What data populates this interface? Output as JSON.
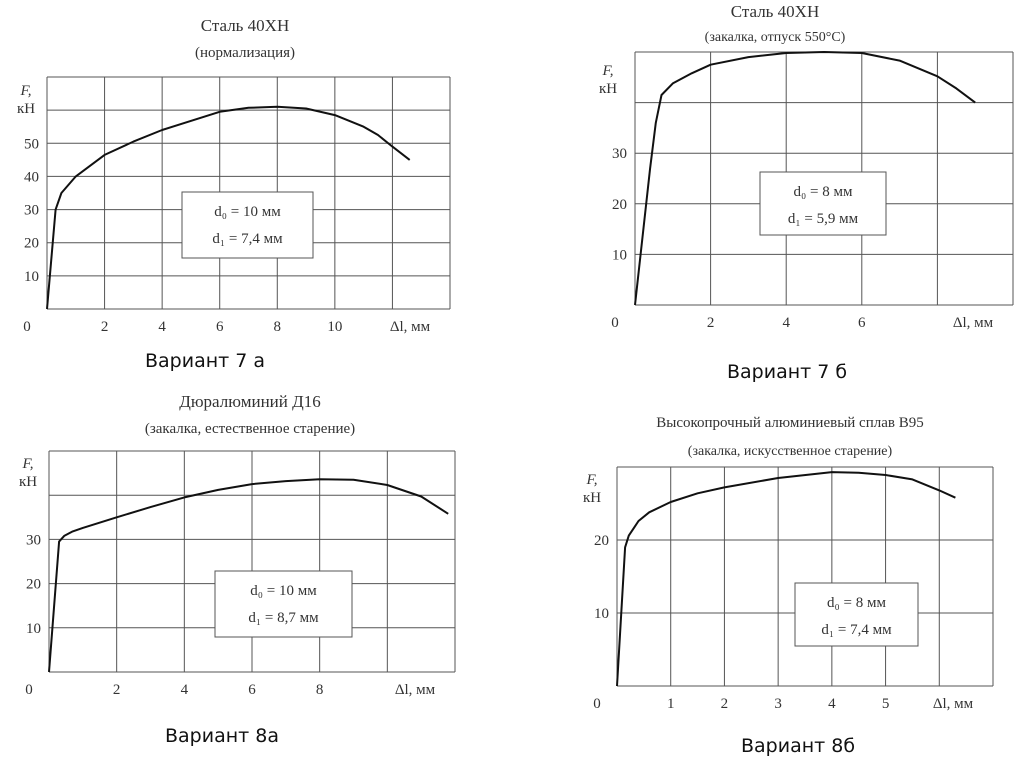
{
  "chart_data": [
    {
      "type": "line",
      "title": "Сталь  40ХН",
      "subtitle": "(нормализация)",
      "caption": "Вариант 7 а",
      "ylabel": [
        "F,",
        "кН"
      ],
      "xlabel": "Δl, мм",
      "xlim": [
        0,
        14
      ],
      "ylim": [
        0,
        70
      ],
      "x_grid_step": 2,
      "y_grid_step": 10,
      "grid": true,
      "x_ticks": [
        "0",
        "2",
        "4",
        "6",
        "8",
        "10"
      ],
      "x_tick_values": [
        0,
        2,
        4,
        6,
        8,
        10
      ],
      "y_ticks": [
        "10",
        "20",
        "30",
        "40",
        "50"
      ],
      "y_tick_values": [
        10,
        20,
        30,
        40,
        50
      ],
      "annotation": [
        "d₀ = 10 мм",
        "d₁ = 7,4 мм"
      ],
      "x": [
        0,
        0.3,
        0.5,
        1,
        2,
        3,
        4,
        6,
        7,
        8,
        9,
        10,
        11,
        11.5,
        12,
        12.6
      ],
      "y": [
        0,
        30,
        35,
        40,
        46.5,
        50.5,
        54,
        59.5,
        60.7,
        61,
        60.5,
        58.5,
        55,
        52.5,
        49,
        45
      ]
    },
    {
      "type": "line",
      "title": "Сталь  40ХН",
      "subtitle": "(закалка, отпуск 550°С)",
      "caption": "Вариант 7 б",
      "ylabel": [
        "F,",
        "кН"
      ],
      "xlabel": "Δl, мм",
      "xlim": [
        0,
        10
      ],
      "ylim": [
        0,
        50
      ],
      "x_grid_step": 2,
      "y_grid_step": 10,
      "grid": true,
      "x_ticks": [
        "0",
        "2",
        "4",
        "6"
      ],
      "x_tick_values": [
        0,
        2,
        4,
        6
      ],
      "y_ticks": [
        "10",
        "20",
        "30"
      ],
      "y_tick_values": [
        10,
        20,
        30
      ],
      "annotation": [
        "d₀ = 8 мм",
        "d₁ = 5,9 мм"
      ],
      "x": [
        0,
        0.4,
        0.55,
        0.7,
        1,
        1.5,
        2,
        3,
        4,
        5,
        6,
        7,
        8,
        8.5,
        9
      ],
      "y": [
        0,
        27,
        36,
        41.5,
        43.8,
        45.8,
        47.5,
        49,
        49.8,
        50,
        49.8,
        48.3,
        45.2,
        42.8,
        40
      ]
    },
    {
      "type": "line",
      "title": "Дюралюминий Д16",
      "subtitle": "(закалка, естественное старение)",
      "caption": "Вариант 8а",
      "ylabel": [
        "F,",
        "кН"
      ],
      "xlabel": "Δl, мм",
      "xlim": [
        0,
        12
      ],
      "ylim": [
        0,
        50
      ],
      "x_grid_step": 2,
      "y_grid_step": 10,
      "grid": true,
      "x_ticks": [
        "0",
        "2",
        "4",
        "6",
        "8"
      ],
      "x_tick_values": [
        0,
        2,
        4,
        6,
        8
      ],
      "y_ticks": [
        "10",
        "20",
        "30"
      ],
      "y_tick_values": [
        10,
        20,
        30
      ],
      "annotation": [
        "d₀ = 10 мм",
        "d₁ = 8,7 мм"
      ],
      "x": [
        0,
        0.3,
        0.45,
        0.7,
        1,
        2,
        3,
        4,
        5,
        6,
        7,
        8,
        9,
        10,
        11,
        11.8
      ],
      "y": [
        0,
        29.5,
        30.8,
        31.8,
        32.6,
        35,
        37.3,
        39.5,
        41.2,
        42.5,
        43.2,
        43.6,
        43.5,
        42.3,
        39.7,
        35.8
      ]
    },
    {
      "type": "line",
      "title": "Высокопрочный алюминиевый сплав В95",
      "subtitle": "(закалка, искусственное старение)",
      "caption": "Вариант 8б",
      "ylabel": [
        "F,",
        "кН"
      ],
      "xlabel": "Δl, мм",
      "xlim": [
        0,
        7
      ],
      "ylim": [
        0,
        30
      ],
      "x_grid_step": 1,
      "y_grid_step": 10,
      "grid": true,
      "x_ticks": [
        "0",
        "1",
        "2",
        "3",
        "4",
        "5"
      ],
      "x_tick_values": [
        0,
        1,
        2,
        3,
        4,
        5
      ],
      "y_ticks": [
        "10",
        "20"
      ],
      "y_tick_values": [
        10,
        20
      ],
      "annotation": [
        "d₀ = 8 мм",
        "d₁ = 7,4 мм"
      ],
      "x": [
        0,
        0.15,
        0.22,
        0.4,
        0.6,
        1,
        1.5,
        2,
        3,
        4,
        4.5,
        5,
        5.5,
        6,
        6.3
      ],
      "y": [
        0,
        19,
        20.6,
        22.6,
        23.8,
        25.2,
        26.4,
        27.2,
        28.5,
        29.3,
        29.2,
        28.9,
        28.3,
        26.8,
        25.8
      ]
    }
  ]
}
